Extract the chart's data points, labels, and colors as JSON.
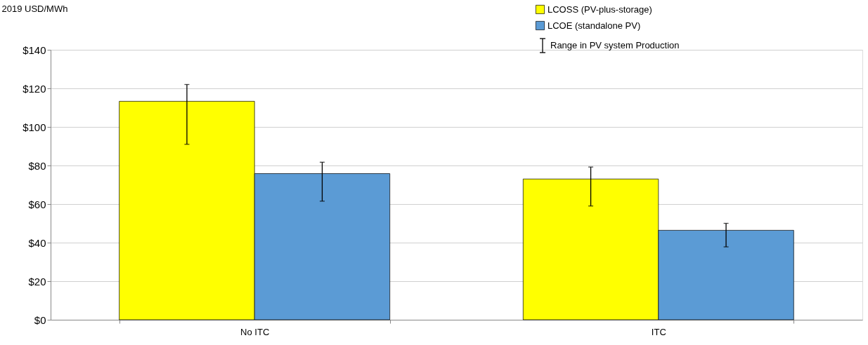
{
  "chart_data": {
    "type": "bar",
    "ylabel": "2019 USD/MWh",
    "categories": [
      "No ITC",
      "ITC"
    ],
    "series": [
      {
        "name": "LCOSS (PV-plus-storage)",
        "color": "#ffff00",
        "values": [
          113.3,
          73.0
        ],
        "errors": [
          [
            91.0,
            122.0
          ],
          [
            59.0,
            79.2
          ]
        ]
      },
      {
        "name": "LCOE (standalone PV)",
        "color": "#5b9bd5",
        "values": [
          75.8,
          46.4
        ],
        "errors": [
          [
            61.5,
            81.7
          ],
          [
            37.8,
            50.0
          ]
        ]
      }
    ],
    "ylim": [
      0,
      140
    ],
    "yticks": [
      {
        "value": 0,
        "label": "$0"
      },
      {
        "value": 20,
        "label": "$20"
      },
      {
        "value": 40,
        "label": "$40"
      },
      {
        "value": 60,
        "label": "$60"
      },
      {
        "value": 80,
        "label": "$80"
      },
      {
        "value": 100,
        "label": "$100"
      },
      {
        "value": 120,
        "label": "$120"
      },
      {
        "value": 140,
        "label": "$140"
      }
    ],
    "grid": "y",
    "legend": "top right",
    "annotations": [
      "Range in PV system Production"
    ]
  }
}
